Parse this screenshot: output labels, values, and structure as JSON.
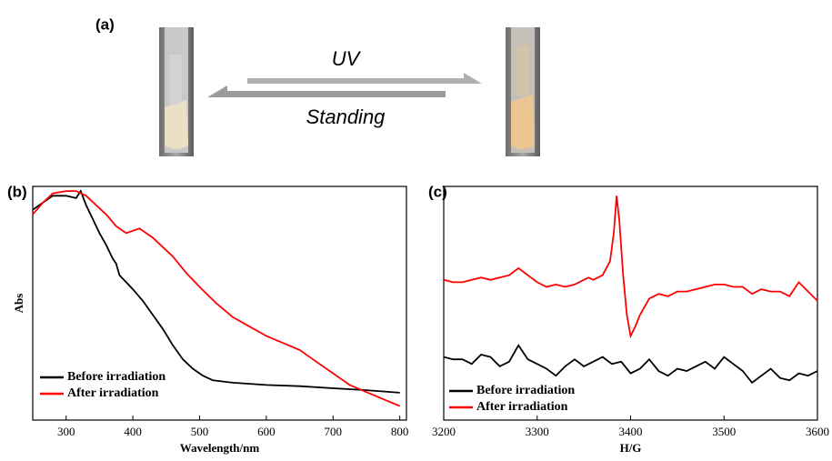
{
  "figure_a": {
    "label": "(a)",
    "forward": "UV",
    "backward": "Standing"
  },
  "chart_data": [
    {
      "type": "line",
      "panel_label": "(b)",
      "xlabel": "Wavelength/nm",
      "ylabel": "Abs",
      "xlim": [
        250,
        810
      ],
      "ylim": [
        0,
        1
      ],
      "xticks": [
        300,
        400,
        500,
        600,
        700,
        800
      ],
      "legend": "lower left",
      "series": [
        {
          "name": "Before irradiation",
          "color": "#000000",
          "x": [
            250,
            265,
            280,
            300,
            315,
            322,
            330,
            340,
            350,
            360,
            370,
            375,
            380,
            390,
            400,
            415,
            430,
            445,
            460,
            475,
            490,
            505,
            520,
            550,
            600,
            650,
            700,
            750,
            800
          ],
          "values": [
            0.9,
            0.93,
            0.96,
            0.96,
            0.95,
            0.98,
            0.92,
            0.86,
            0.8,
            0.75,
            0.69,
            0.67,
            0.62,
            0.59,
            0.56,
            0.51,
            0.45,
            0.39,
            0.32,
            0.26,
            0.22,
            0.19,
            0.17,
            0.16,
            0.15,
            0.145,
            0.136,
            0.128,
            0.117
          ]
        },
        {
          "name": "After irradiation",
          "color": "#ff0000",
          "x": [
            250,
            265,
            280,
            300,
            315,
            330,
            345,
            360,
            375,
            390,
            400,
            410,
            420,
            430,
            445,
            460,
            480,
            500,
            525,
            550,
            575,
            600,
            625,
            650,
            675,
            700,
            725,
            750,
            775,
            800
          ],
          "values": [
            0.88,
            0.93,
            0.97,
            0.98,
            0.98,
            0.96,
            0.92,
            0.88,
            0.83,
            0.8,
            0.81,
            0.82,
            0.8,
            0.78,
            0.74,
            0.7,
            0.63,
            0.57,
            0.5,
            0.44,
            0.4,
            0.36,
            0.33,
            0.3,
            0.25,
            0.2,
            0.15,
            0.12,
            0.09,
            0.06
          ]
        }
      ]
    },
    {
      "type": "line",
      "panel_label": "(c)",
      "xlabel": "H/G",
      "xlim": [
        3200,
        3600
      ],
      "ylim": [
        0,
        1
      ],
      "xticks": [
        3200,
        3300,
        3400,
        3500,
        3600
      ],
      "legend": "lower left",
      "series": [
        {
          "name": "Before irradiation",
          "color": "#000000",
          "x": [
            3200,
            3210,
            3220,
            3230,
            3240,
            3250,
            3260,
            3270,
            3280,
            3290,
            3300,
            3310,
            3320,
            3330,
            3340,
            3350,
            3360,
            3370,
            3380,
            3390,
            3400,
            3410,
            3420,
            3430,
            3440,
            3450,
            3460,
            3470,
            3480,
            3490,
            3500,
            3510,
            3520,
            3530,
            3540,
            3550,
            3560,
            3570,
            3580,
            3590,
            3600
          ],
          "values": [
            0.27,
            0.26,
            0.26,
            0.24,
            0.28,
            0.27,
            0.23,
            0.25,
            0.32,
            0.26,
            0.24,
            0.22,
            0.19,
            0.23,
            0.26,
            0.23,
            0.25,
            0.27,
            0.24,
            0.25,
            0.2,
            0.22,
            0.26,
            0.21,
            0.19,
            0.22,
            0.21,
            0.23,
            0.25,
            0.22,
            0.27,
            0.24,
            0.21,
            0.16,
            0.19,
            0.22,
            0.18,
            0.17,
            0.2,
            0.19,
            0.21
          ]
        },
        {
          "name": "After irradiation",
          "color": "#ff0000",
          "x": [
            3200,
            3210,
            3220,
            3230,
            3240,
            3250,
            3260,
            3270,
            3280,
            3290,
            3300,
            3310,
            3320,
            3330,
            3340,
            3350,
            3355,
            3360,
            3370,
            3378,
            3382,
            3385,
            3388,
            3392,
            3396,
            3400,
            3405,
            3410,
            3420,
            3430,
            3440,
            3450,
            3460,
            3470,
            3480,
            3490,
            3500,
            3510,
            3520,
            3530,
            3540,
            3550,
            3560,
            3570,
            3580,
            3590,
            3600
          ],
          "values": [
            0.6,
            0.59,
            0.59,
            0.6,
            0.61,
            0.6,
            0.61,
            0.62,
            0.65,
            0.62,
            0.59,
            0.57,
            0.58,
            0.57,
            0.58,
            0.6,
            0.61,
            0.6,
            0.62,
            0.68,
            0.8,
            0.96,
            0.85,
            0.62,
            0.45,
            0.36,
            0.4,
            0.45,
            0.52,
            0.54,
            0.53,
            0.55,
            0.55,
            0.56,
            0.57,
            0.58,
            0.58,
            0.57,
            0.57,
            0.54,
            0.56,
            0.55,
            0.55,
            0.53,
            0.59,
            0.55,
            0.51
          ]
        }
      ]
    }
  ]
}
